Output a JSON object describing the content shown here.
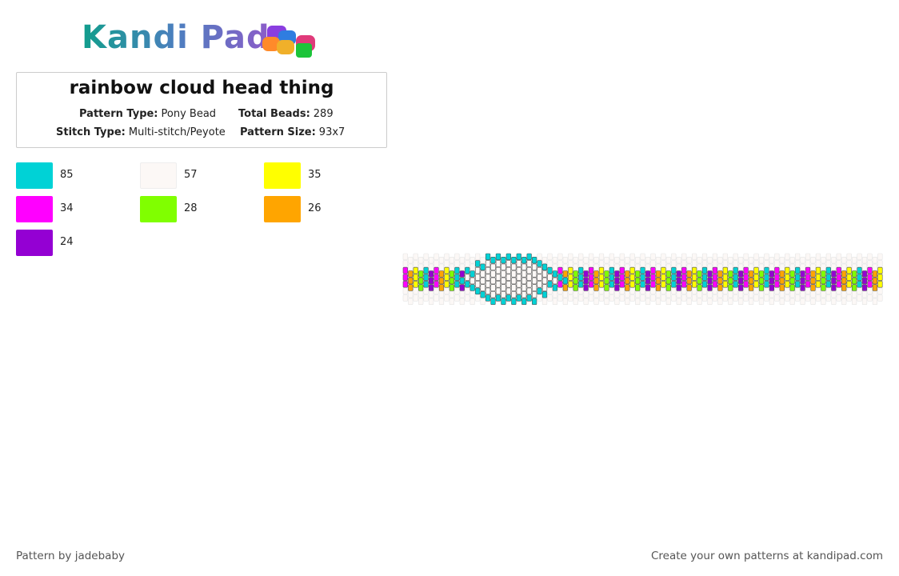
{
  "logo": "Kandi Pad",
  "title": "rainbow cloud head thing",
  "info": [
    {
      "label": "Pattern Type:",
      "value": "Pony Bead"
    },
    {
      "label": "Total Beads:",
      "value": 289
    },
    {
      "label": "Stitch Type:",
      "value": "Multi-stitch/Peyote"
    },
    {
      "label": "Pattern Size:",
      "value": "93x7"
    }
  ],
  "colors": [
    {
      "color": "#00d2d6",
      "count": 85
    },
    {
      "color": "#fcf8f6",
      "count": 57
    },
    {
      "color": "#ffff00",
      "count": 35
    },
    {
      "color": "#ff00ff",
      "count": 34
    },
    {
      "color": "#80ff00",
      "count": 28
    },
    {
      "color": "#ffa500",
      "count": 26
    },
    {
      "color": "#9400d3",
      "count": 24
    }
  ],
  "footer": {
    "left": "Pattern by jadebaby",
    "right": "Create your own patterns at kandipad.com"
  }
}
